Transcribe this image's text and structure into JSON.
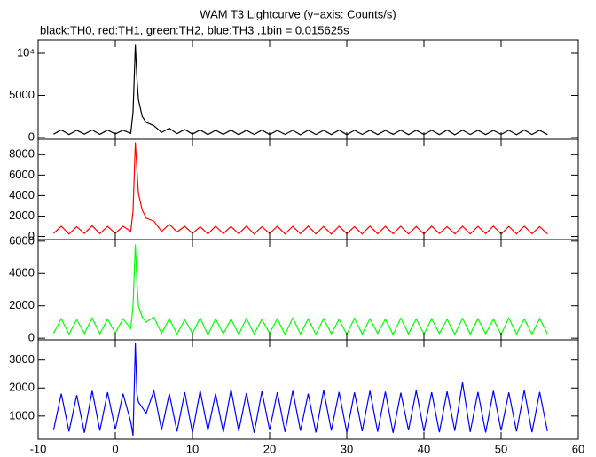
{
  "chart_data": [
    {
      "type": "line",
      "title": "WAM T3 Lightcurve (y−axis: Counts/s)",
      "subtitle": "black:TH0, red:TH1, green:TH2, blue:TH3 ,1bin = 0.015625s",
      "x": [
        -8,
        -7,
        -6,
        -5,
        -4,
        -3,
        -2,
        -1,
        0,
        1,
        2,
        2.3,
        2.6,
        2.8,
        3,
        3.5,
        4,
        5,
        6,
        7,
        8,
        9,
        10,
        11,
        12,
        13,
        14,
        15,
        16,
        17,
        18,
        19,
        20,
        21,
        22,
        23,
        24,
        25,
        26,
        27,
        28,
        29,
        30,
        31,
        32,
        33,
        34,
        35,
        36,
        37,
        38,
        39,
        40,
        41,
        42,
        43,
        44,
        45,
        46,
        47,
        48,
        49,
        50,
        51,
        52,
        53,
        54,
        55,
        56
      ],
      "series": [
        {
          "color": "#000000",
          "values": [
            400,
            900,
            350,
            850,
            400,
            900,
            380,
            880,
            420,
            860,
            500,
            3000,
            11000,
            7000,
            4500,
            2500,
            1800,
            1400,
            600,
            1100,
            450,
            950,
            400,
            900,
            350,
            850,
            380,
            870,
            340,
            860,
            360,
            880,
            350,
            840,
            370,
            850,
            330,
            870,
            360,
            860,
            350,
            880,
            340,
            850,
            370,
            860,
            350,
            840,
            380,
            870,
            340,
            860,
            360,
            850,
            350,
            880,
            330,
            870,
            360,
            860,
            350,
            840,
            370,
            850,
            340,
            880,
            360,
            860,
            350
          ]
        }
      ],
      "xlim": [
        -10,
        60
      ],
      "xticks": [
        -10,
        0,
        10,
        20,
        30,
        40,
        50,
        60
      ],
      "ylim": [
        -210,
        11580
      ],
      "yticks": [
        0,
        5000,
        {
          "value": 10000,
          "label": "10⁴"
        }
      ]
    },
    {
      "type": "line",
      "x": [
        -8,
        -7,
        -6,
        -5,
        -4,
        -3,
        -2,
        -1,
        0,
        1,
        2,
        2.3,
        2.6,
        2.8,
        3,
        3.5,
        4,
        5,
        6,
        7,
        8,
        9,
        10,
        11,
        12,
        13,
        14,
        15,
        16,
        17,
        18,
        19,
        20,
        21,
        22,
        23,
        24,
        25,
        26,
        27,
        28,
        29,
        30,
        31,
        32,
        33,
        34,
        35,
        36,
        37,
        38,
        39,
        40,
        41,
        42,
        43,
        44,
        45,
        46,
        47,
        48,
        49,
        50,
        51,
        52,
        53,
        54,
        55,
        56
      ],
      "series": [
        {
          "color": "#ff0000",
          "values": [
            300,
            1000,
            250,
            950,
            300,
            1050,
            280,
            980,
            320,
            1000,
            500,
            2500,
            9200,
            6500,
            4200,
            2600,
            1800,
            1500,
            500,
            1200,
            450,
            1000,
            300,
            950,
            250,
            1000,
            280,
            980,
            260,
            1020,
            240,
            970,
            290,
            1000,
            250,
            990,
            270,
            1010,
            260,
            980,
            240,
            1000,
            280,
            970,
            250,
            1020,
            260,
            990,
            270,
            1000,
            250,
            980,
            240,
            1010,
            290,
            970,
            260,
            1000,
            250,
            990,
            280,
            1020,
            240,
            980,
            260,
            1000,
            270,
            960,
            250
          ]
        }
      ],
      "xlim": [
        -10,
        60
      ],
      "xticks": [
        -10,
        0,
        10,
        20,
        30,
        40,
        50,
        60
      ],
      "ylim": [
        -300,
        9500
      ],
      "yticks": [
        0,
        2000,
        4000,
        6000,
        8000
      ]
    },
    {
      "type": "line",
      "x": [
        -8,
        -7,
        -6,
        -5,
        -4,
        -3,
        -2,
        -1,
        0,
        1,
        2,
        2.3,
        2.6,
        2.8,
        3,
        3.5,
        4,
        5,
        6,
        7,
        8,
        9,
        10,
        11,
        12,
        13,
        14,
        15,
        16,
        17,
        18,
        19,
        20,
        21,
        22,
        23,
        24,
        25,
        26,
        27,
        28,
        29,
        30,
        31,
        32,
        33,
        34,
        35,
        36,
        37,
        38,
        39,
        40,
        41,
        42,
        43,
        44,
        45,
        46,
        47,
        48,
        49,
        50,
        51,
        52,
        53,
        54,
        55,
        56
      ],
      "series": [
        {
          "color": "#00ff00",
          "values": [
            300,
            1200,
            250,
            1150,
            300,
            1250,
            280,
            1180,
            320,
            1200,
            600,
            2000,
            5800,
            3500,
            2000,
            1300,
            1000,
            1300,
            300,
            1200,
            250,
            1150,
            300,
            1250,
            200,
            1200,
            280,
            1180,
            240,
            1220,
            260,
            1170,
            300,
            1200,
            230,
            1250,
            270,
            1190,
            250,
            1210,
            280,
            1160,
            240,
            1230,
            260,
            1200,
            300,
            1180,
            230,
            1240,
            270,
            1190,
            250,
            1210,
            290,
            1170,
            240,
            1220,
            260,
            1200,
            280,
            1180,
            230,
            1250,
            270,
            1190,
            250,
            1210,
            280
          ]
        }
      ],
      "xlim": [
        -10,
        60
      ],
      "xticks": [
        -10,
        0,
        10,
        20,
        30,
        40,
        50,
        60
      ],
      "ylim": [
        -100,
        6100
      ],
      "yticks": [
        0,
        2000,
        4000,
        6000
      ]
    },
    {
      "type": "line",
      "x": [
        -8,
        -7,
        -6,
        -5,
        -4,
        -3,
        -2,
        -1,
        0,
        1,
        2,
        2.3,
        2.6,
        2.8,
        3,
        3.5,
        4,
        5,
        6,
        7,
        8,
        9,
        10,
        11,
        12,
        13,
        14,
        15,
        16,
        17,
        18,
        19,
        20,
        21,
        22,
        23,
        24,
        25,
        26,
        27,
        28,
        29,
        30,
        31,
        32,
        33,
        34,
        35,
        36,
        37,
        38,
        39,
        40,
        41,
        42,
        43,
        44,
        45,
        46,
        47,
        48,
        49,
        50,
        51,
        52,
        53,
        54,
        55,
        56
      ],
      "series": [
        {
          "color": "#0000ff",
          "values": [
            500,
            1800,
            450,
            1750,
            400,
            1900,
            480,
            1850,
            520,
            1800,
            800,
            300,
            3600,
            1800,
            1500,
            1300,
            1100,
            1900,
            500,
            1800,
            450,
            1850,
            400,
            1900,
            480,
            1800,
            420,
            1950,
            460,
            1820,
            400,
            1880,
            500,
            1850,
            430,
            1900,
            470,
            1800,
            410,
            1920,
            480,
            1860,
            420,
            1840,
            460,
            1900,
            440,
            1870,
            400,
            1830,
            490,
            1910,
            450,
            1850,
            420,
            1880,
            470,
            2200,
            430,
            1860,
            410,
            1900,
            480,
            1840,
            450,
            1920,
            420,
            1860,
            460
          ]
        }
      ],
      "xlim": [
        -10,
        60
      ],
      "xticks": [
        -10,
        0,
        10,
        20,
        30,
        40,
        50,
        60
      ],
      "xtick_labels_shown": true,
      "ylim": [
        170,
        3720
      ],
      "yticks": [
        1000,
        2000,
        3000
      ]
    }
  ]
}
